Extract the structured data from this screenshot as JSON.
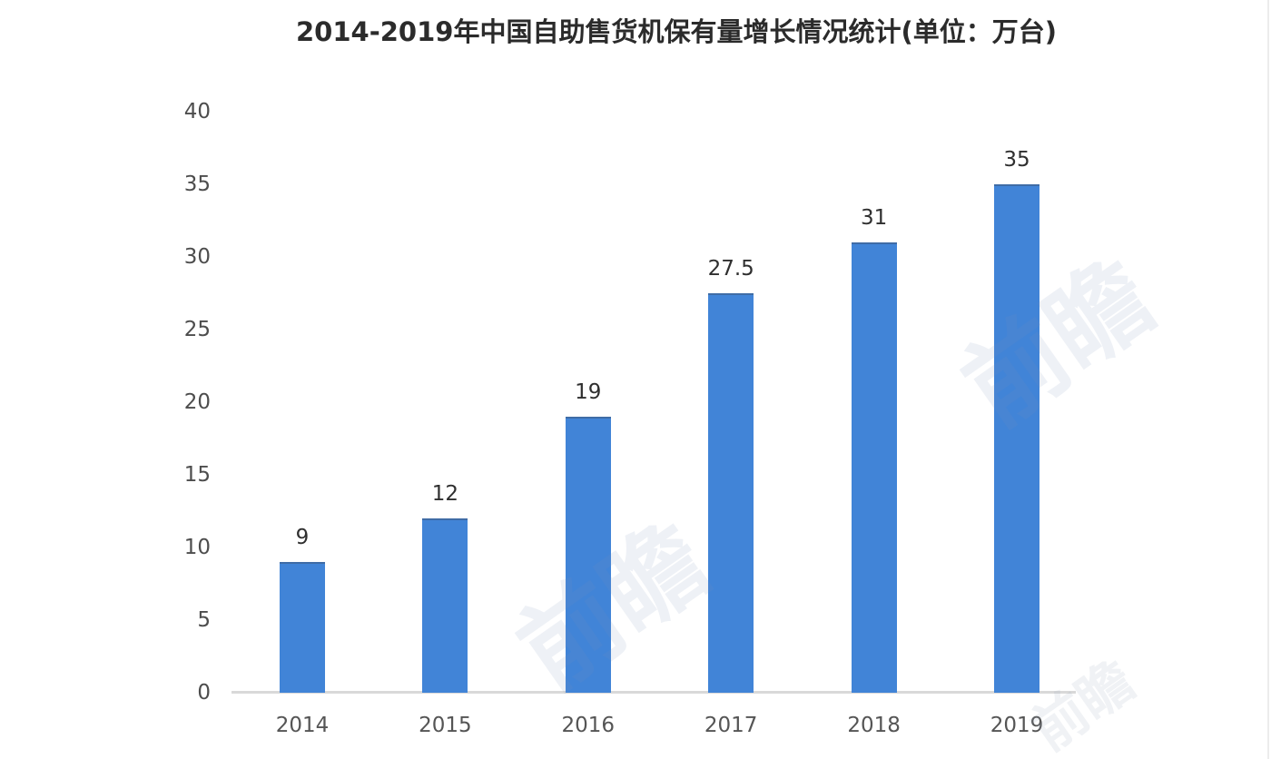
{
  "title": "2014-2019年中国自助售货机保有量增长情况统计(单位：万台)",
  "chart_data": {
    "type": "bar",
    "title": "2014-2019年中国自助售货机保有量增长情况统计(单位：万台)",
    "categories": [
      "2014",
      "2015",
      "2016",
      "2017",
      "2018",
      "2019"
    ],
    "values": [
      9,
      12,
      19,
      27.5,
      31,
      35
    ],
    "xlabel": "",
    "ylabel": "",
    "unit": "万台",
    "ylim": [
      0,
      40
    ],
    "yticks": [
      0,
      5,
      10,
      15,
      20,
      25,
      30,
      35,
      40
    ],
    "grid": false,
    "legend_position": "none",
    "bar_color": "#4184d7",
    "bar_top_edge_color": "#3f6ca6",
    "axis_line_color": "#d9d9d9",
    "tick_label_color": "#4d4d4d",
    "value_label_color": "#2f2f2f",
    "title_color": "#2b2b2b"
  },
  "watermark": {
    "glyph": "前瞻"
  }
}
